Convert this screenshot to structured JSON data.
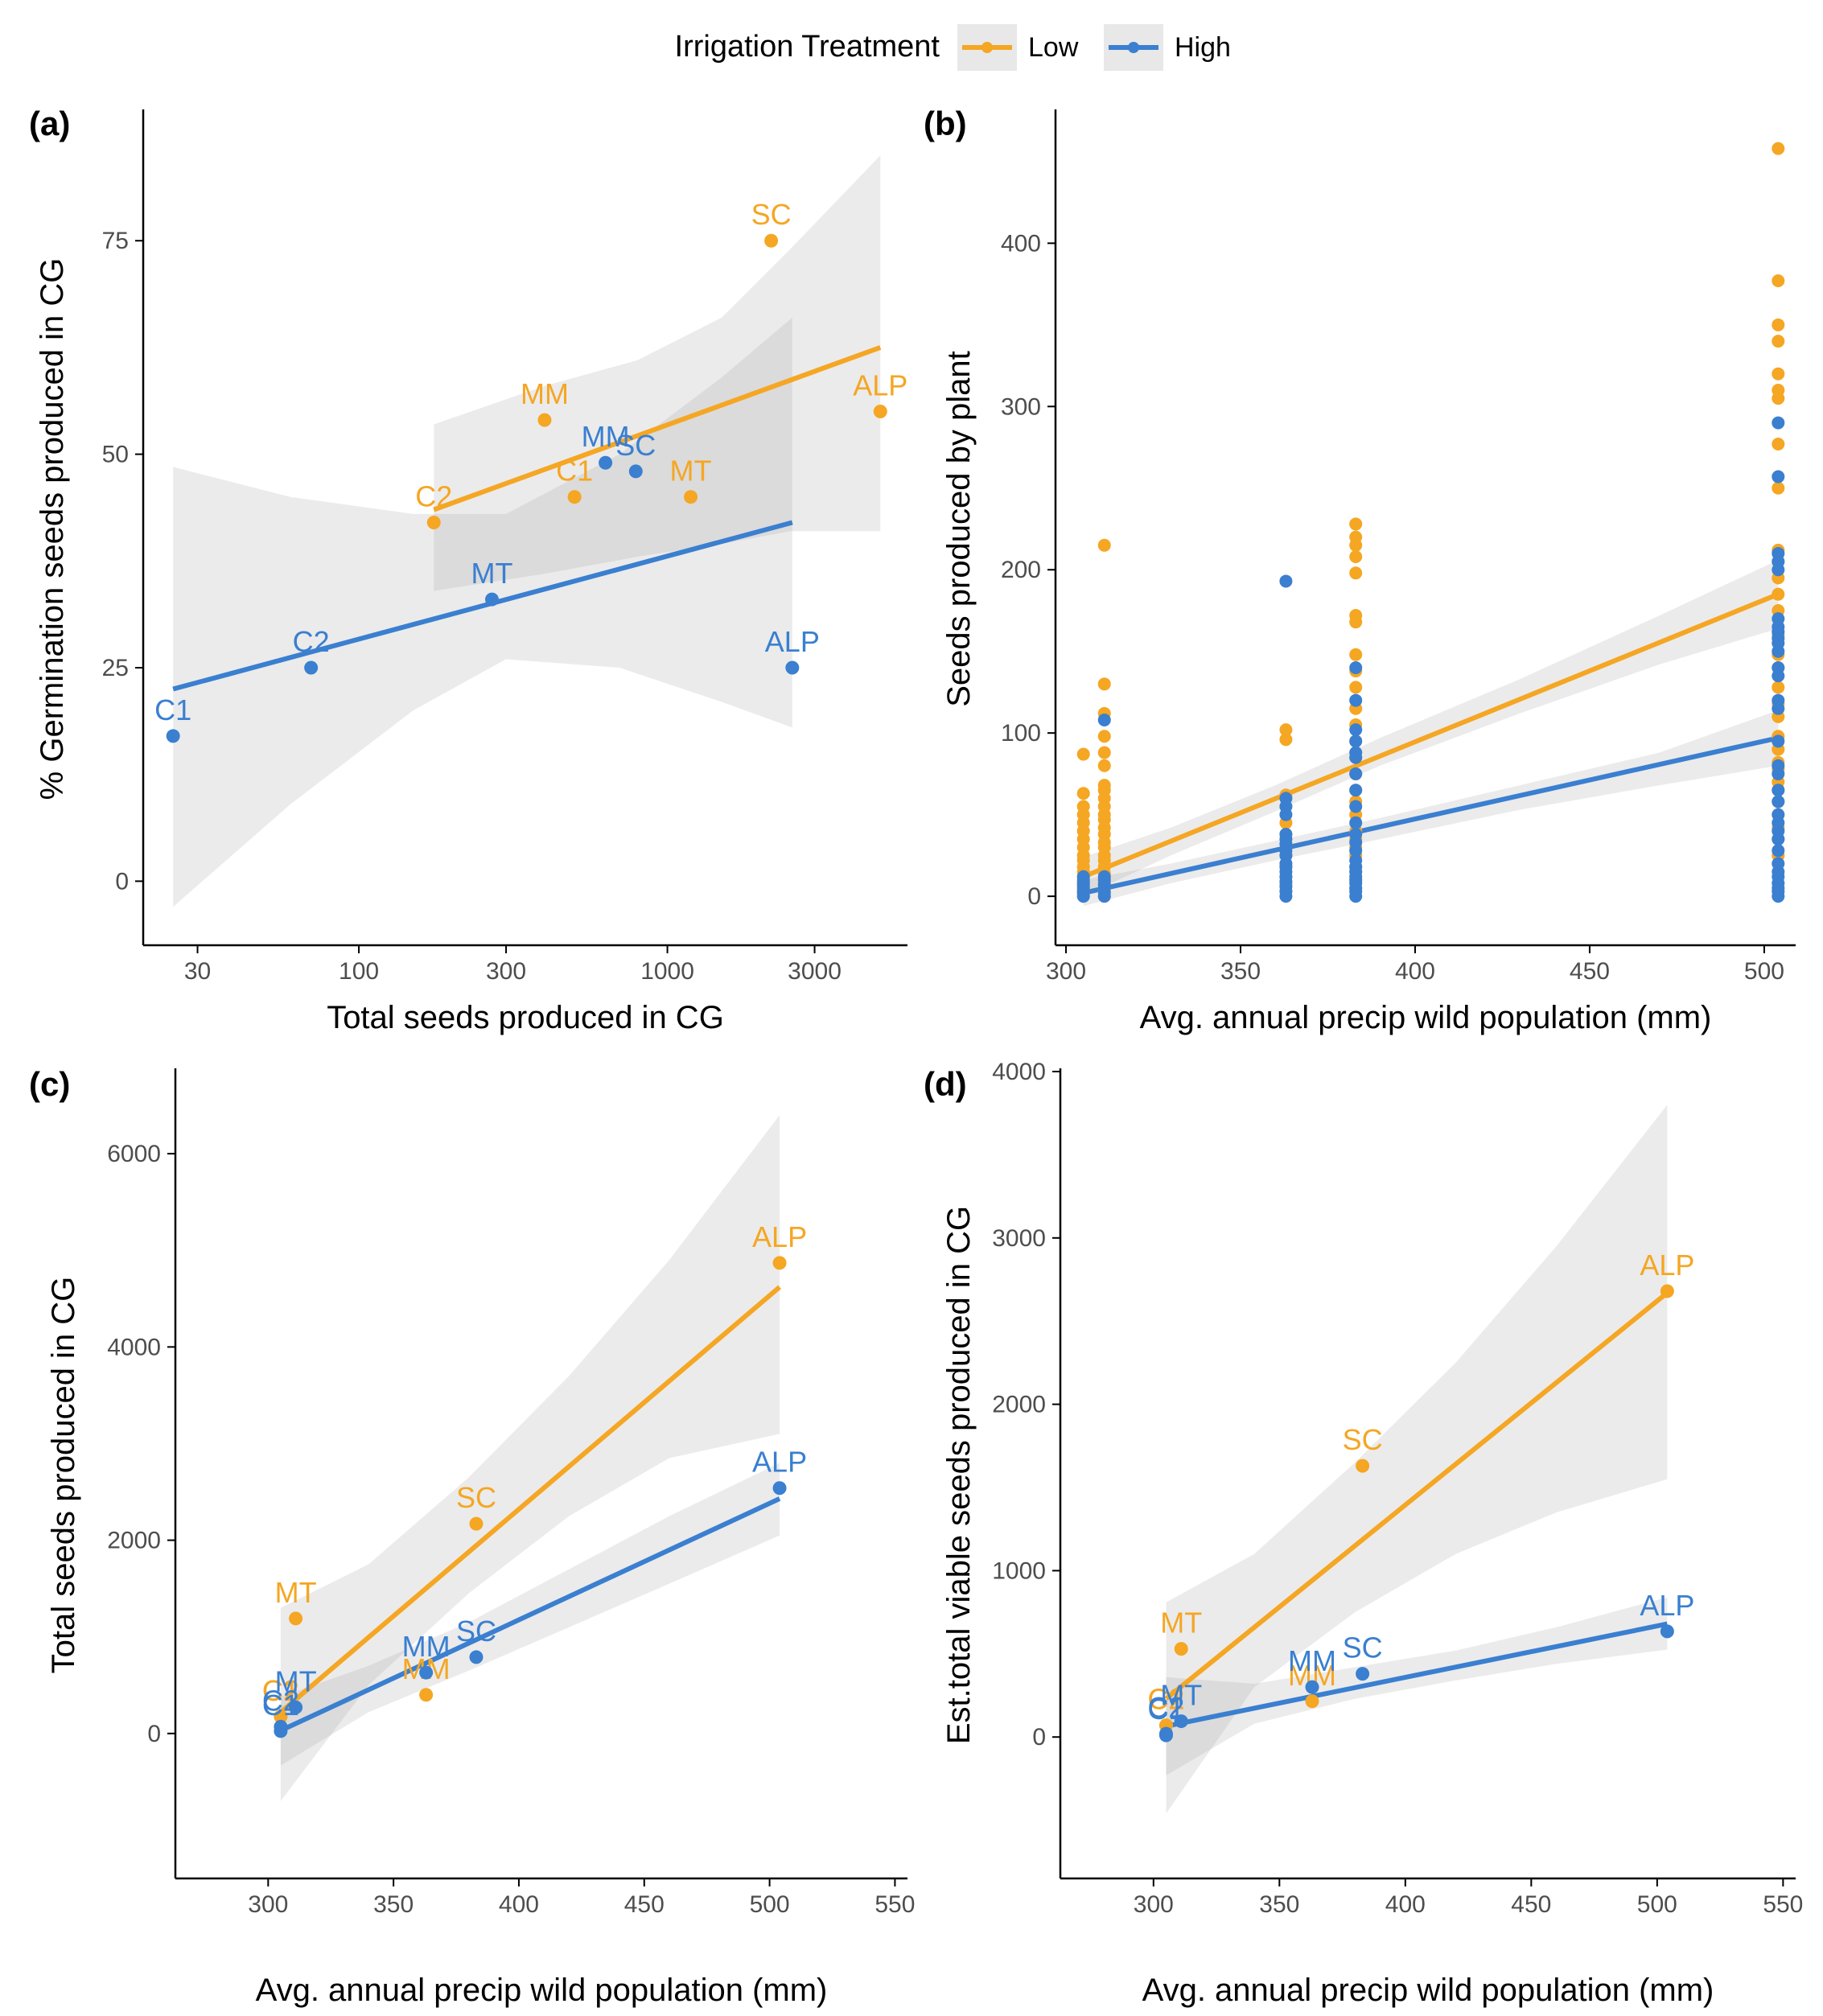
{
  "legend": {
    "title": "Irrigation Treatment",
    "items": [
      {
        "label": "Low",
        "color": "#f5a623"
      },
      {
        "label": "High",
        "color": "#3a7fd0"
      }
    ]
  },
  "colors": {
    "low": "#f5a623",
    "high": "#3a7fd0",
    "band": "#e8e8e8",
    "axis": "#000000",
    "tick_text": "#4d4d4d"
  },
  "chart_data": [
    {
      "panel": "(a)",
      "type": "scatter",
      "xscale": "log10",
      "xlabel": "Total seeds produced in CG",
      "ylabel": "% Germination seeds produced in CG",
      "xlim": [
        20,
        6000
      ],
      "ylim": [
        -7.5,
        90
      ],
      "xticks": [
        30,
        100,
        300,
        1000,
        3000
      ],
      "yticks": [
        0,
        25,
        50,
        75
      ],
      "series": [
        {
          "name": "Low",
          "points": [
            {
              "label": "C2",
              "x": 175,
              "y": 42
            },
            {
              "label": "MM",
              "x": 400,
              "y": 54
            },
            {
              "label": "C1",
              "x": 500,
              "y": 45
            },
            {
              "label": "MT",
              "x": 1190,
              "y": 45
            },
            {
              "label": "SC",
              "x": 2170,
              "y": 75
            },
            {
              "label": "ALP",
              "x": 4900,
              "y": 55
            }
          ],
          "fit": {
            "x": [
              175,
              4900
            ],
            "y": [
              43.5,
              62.5
            ]
          },
          "band": [
            [
              175,
              34,
              53.5
            ],
            [
              400,
              36,
              58
            ],
            [
              800,
              38,
              61
            ],
            [
              1500,
              39.5,
              66
            ],
            [
              2500,
              41,
              74
            ],
            [
              4900,
              41,
              85
            ]
          ]
        },
        {
          "name": "High",
          "points": [
            {
              "label": "C1",
              "x": 25,
              "y": 17
            },
            {
              "label": "C2",
              "x": 70,
              "y": 25
            },
            {
              "label": "MT",
              "x": 270,
              "y": 33
            },
            {
              "label": "MM",
              "x": 630,
              "y": 49
            },
            {
              "label": "SC",
              "x": 790,
              "y": 48
            },
            {
              "label": "ALP",
              "x": 2540,
              "y": 25
            }
          ],
          "fit": {
            "x": [
              25,
              2540
            ],
            "y": [
              22.5,
              42
            ]
          },
          "band": [
            [
              25,
              -3,
              48.5
            ],
            [
              60,
              9,
              45
            ],
            [
              150,
              20,
              43
            ],
            [
              300,
              26,
              43
            ],
            [
              700,
              25,
              50
            ],
            [
              1500,
              21,
              59
            ],
            [
              2540,
              18,
              66
            ]
          ]
        }
      ]
    },
    {
      "panel": "(b)",
      "type": "scatter",
      "xlabel": "Avg. annual precip wild population (mm)",
      "ylabel": "Seeds produced by plant",
      "xlim": [
        297,
        509
      ],
      "ylim": [
        -30,
        480
      ],
      "xticks": [
        300,
        350,
        400,
        450,
        500
      ],
      "yticks": [
        0,
        100,
        200,
        300,
        400
      ],
      "series": [
        {
          "name": "Low",
          "groups": [
            {
              "x": 305,
              "values": [
                0,
                2,
                4,
                6,
                9,
                12,
                15,
                18,
                22,
                25,
                30,
                35,
                40,
                45,
                50,
                55,
                63,
                87
              ]
            },
            {
              "x": 311,
              "values": [
                0,
                3,
                5,
                8,
                10,
                14,
                18,
                22,
                25,
                30,
                33,
                38,
                42,
                47,
                50,
                55,
                60,
                65,
                68,
                80,
                88,
                98,
                112,
                130,
                215
              ]
            },
            {
              "x": 363,
              "values": [
                3,
                8,
                12,
                18,
                25,
                32,
                38,
                45,
                55,
                62,
                96,
                102
              ]
            },
            {
              "x": 383,
              "values": [
                5,
                10,
                15,
                18,
                25,
                30,
                35,
                40,
                50,
                58,
                65,
                75,
                85,
                95,
                105,
                115,
                128,
                138,
                148,
                168,
                172,
                198,
                208,
                215,
                220,
                228
              ]
            },
            {
              "x": 504,
              "values": [
                25,
                35,
                42,
                50,
                58,
                65,
                70,
                78,
                82,
                90,
                98,
                110,
                118,
                128,
                140,
                148,
                160,
                175,
                185,
                195,
                205,
                212,
                250,
                277,
                305,
                310,
                320,
                340,
                350,
                377,
                458
              ]
            }
          ],
          "fit": {
            "x": [
              305,
              504
            ],
            "y": [
              12,
              185
            ]
          },
          "band": [
            [
              305,
              0,
              24
            ],
            [
              330,
              25,
              42
            ],
            [
              360,
              52,
              68
            ],
            [
              390,
              80,
              97
            ],
            [
              430,
              112,
              133
            ],
            [
              470,
              142,
              172
            ],
            [
              504,
              164,
              206
            ]
          ]
        },
        {
          "name": "High",
          "groups": [
            {
              "x": 305,
              "values": [
                0,
                2,
                3,
                5,
                7,
                8,
                10,
                12
              ]
            },
            {
              "x": 311,
              "values": [
                0,
                2,
                5,
                7,
                10,
                12,
                108
              ]
            },
            {
              "x": 363,
              "values": [
                0,
                3,
                6,
                9,
                12,
                15,
                18,
                20,
                25,
                28,
                32,
                35,
                38,
                50,
                55,
                60,
                193
              ]
            },
            {
              "x": 383,
              "values": [
                0,
                3,
                5,
                8,
                10,
                12,
                15,
                18,
                22,
                28,
                33,
                38,
                45,
                55,
                65,
                75,
                85,
                88,
                95,
                102,
                120,
                140
              ]
            },
            {
              "x": 504,
              "values": [
                0,
                3,
                5,
                8,
                12,
                15,
                20,
                28,
                35,
                40,
                45,
                50,
                58,
                65,
                75,
                80,
                95,
                115,
                120,
                135,
                140,
                150,
                155,
                158,
                162,
                165,
                170,
                200,
                205,
                210,
                257,
                290
              ]
            }
          ],
          "fit": {
            "x": [
              305,
              504
            ],
            "y": [
              2,
              97
            ]
          },
          "band": [
            [
              305,
              -6,
              10
            ],
            [
              330,
              8,
              20
            ],
            [
              360,
              22,
              34
            ],
            [
              390,
              35,
              48
            ],
            [
              430,
              53,
              68
            ],
            [
              470,
              68,
              88
            ],
            [
              504,
              80,
              114
            ]
          ]
        }
      ]
    },
    {
      "panel": "(c)",
      "type": "scatter",
      "xlabel": "Avg. annual precip wild population (mm)",
      "ylabel": "Total seeds produced in CG",
      "xlim": [
        263,
        555
      ],
      "ylim": [
        -1500,
        6850
      ],
      "xticks": [
        300,
        350,
        400,
        450,
        500,
        550
      ],
      "yticks": [
        0,
        2000,
        4000,
        6000
      ],
      "series": [
        {
          "name": "Low",
          "points": [
            {
              "label": "C1",
              "x": 305,
              "y": 175
            },
            {
              "label": "C2",
              "x": 305,
              "y": 175
            },
            {
              "label": "MT",
              "x": 311,
              "y": 1190
            },
            {
              "label": "MM",
              "x": 363,
              "y": 400
            },
            {
              "label": "SC",
              "x": 383,
              "y": 2170
            },
            {
              "label": "ALP",
              "x": 504,
              "y": 4870
            }
          ],
          "fit": {
            "x": [
              305,
              504
            ],
            "y": [
              220,
              4620
            ]
          },
          "band": [
            [
              305,
              -700,
              1300
            ],
            [
              340,
              500,
              1750
            ],
            [
              380,
              1450,
              2650
            ],
            [
              420,
              2250,
              3700
            ],
            [
              460,
              2850,
              4900
            ],
            [
              504,
              3100,
              6400
            ]
          ]
        },
        {
          "name": "High",
          "points": [
            {
              "label": "C1",
              "x": 305,
              "y": 25
            },
            {
              "label": "C2",
              "x": 305,
              "y": 70
            },
            {
              "label": "MT",
              "x": 311,
              "y": 270
            },
            {
              "label": "MM",
              "x": 363,
              "y": 630
            },
            {
              "label": "SC",
              "x": 383,
              "y": 790
            },
            {
              "label": "ALP",
              "x": 504,
              "y": 2540
            }
          ],
          "fit": {
            "x": [
              305,
              504
            ],
            "y": [
              30,
              2430
            ]
          },
          "band": [
            [
              305,
              -330,
              380
            ],
            [
              340,
              220,
              700
            ],
            [
              380,
              650,
              1150
            ],
            [
              420,
              1100,
              1700
            ],
            [
              460,
              1550,
              2250
            ],
            [
              504,
              2050,
              2800
            ]
          ]
        }
      ]
    },
    {
      "panel": "(d)",
      "type": "scatter",
      "xlabel": "Avg. annual precip wild population (mm)",
      "ylabel": "Est.total viable seeds produced in CG",
      "xlim": [
        263,
        555
      ],
      "ylim": [
        -850,
        4000
      ],
      "xticks": [
        300,
        350,
        400,
        450,
        500,
        550
      ],
      "yticks": [
        0,
        1000,
        2000,
        3000,
        4000
      ],
      "series": [
        {
          "name": "Low",
          "points": [
            {
              "label": "C1",
              "x": 305,
              "y": 70
            },
            {
              "label": "C2",
              "x": 305,
              "y": 70
            },
            {
              "label": "MT",
              "x": 311,
              "y": 530
            },
            {
              "label": "MM",
              "x": 363,
              "y": 215
            },
            {
              "label": "SC",
              "x": 383,
              "y": 1630
            },
            {
              "label": "ALP",
              "x": 504,
              "y": 2680
            }
          ],
          "fit": {
            "x": [
              305,
              504
            ],
            "y": [
              230,
              2670
            ]
          },
          "band": [
            [
              305,
              -460,
              810
            ],
            [
              340,
              300,
              1100
            ],
            [
              380,
              750,
              1650
            ],
            [
              420,
              1100,
              2250
            ],
            [
              460,
              1350,
              2950
            ],
            [
              504,
              1550,
              3800
            ]
          ]
        },
        {
          "name": "High",
          "points": [
            {
              "label": "C1",
              "x": 305,
              "y": 10
            },
            {
              "label": "C2",
              "x": 305,
              "y": 20
            },
            {
              "label": "MT",
              "x": 311,
              "y": 95
            },
            {
              "label": "MM",
              "x": 363,
              "y": 300
            },
            {
              "label": "SC",
              "x": 383,
              "y": 380
            },
            {
              "label": "ALP",
              "x": 504,
              "y": 635
            }
          ],
          "fit": {
            "x": [
              305,
              504
            ],
            "y": [
              65,
              680
            ]
          },
          "band": [
            [
              305,
              -230,
              360
            ],
            [
              340,
              80,
              320
            ],
            [
              380,
              230,
              420
            ],
            [
              420,
              340,
              520
            ],
            [
              460,
              440,
              660
            ],
            [
              504,
              525,
              840
            ]
          ]
        }
      ]
    }
  ]
}
